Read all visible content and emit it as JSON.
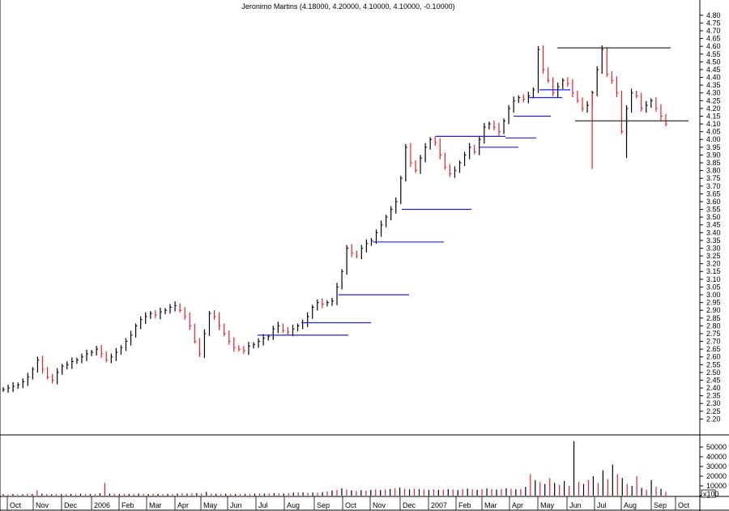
{
  "chart_data": [
    {
      "type": "line",
      "title": "Jeronimo Martins (4.18000, 4.20000, 4.10000, 4.10000, -0.10000)",
      "xlabel": "",
      "ylabel": "",
      "ylim": [
        2.15,
        4.82
      ],
      "y_ticks": [
        "4.80",
        "4.75",
        "4.70",
        "4.65",
        "4.60",
        "4.55",
        "4.50",
        "4.45",
        "4.40",
        "4.35",
        "4.30",
        "4.25",
        "4.20",
        "4.15",
        "4.10",
        "4.05",
        "4.00",
        "3.95",
        "3.90",
        "3.85",
        "3.80",
        "3.75",
        "3.70",
        "3.65",
        "3.60",
        "3.55",
        "3.50",
        "3.45",
        "3.40",
        "3.35",
        "3.30",
        "3.25",
        "3.20",
        "3.15",
        "3.10",
        "3.05",
        "3.00",
        "2.95",
        "2.90",
        "2.85",
        "2.80",
        "2.75",
        "2.70",
        "2.65",
        "2.60",
        "2.55",
        "2.50",
        "2.45",
        "2.40",
        "2.35",
        "2.30",
        "2.25",
        "2.20"
      ],
      "x_ticks": [
        "Oct",
        "Nov",
        "Dec",
        "2006",
        "Feb",
        "Mar",
        "Apr",
        "May",
        "Jun",
        "Jul",
        "Aug",
        "Sep",
        "Oct",
        "Nov",
        "Dec",
        "2007",
        "Feb",
        "Mar",
        "Apr",
        "May",
        "Jun",
        "Jul",
        "Aug",
        "Sep",
        "Oct"
      ],
      "grid": false,
      "legend": "none",
      "series": [
        {
          "values": [
            2.39,
            2.4,
            2.41,
            2.42,
            2.44,
            2.47,
            2.52,
            2.58,
            2.52,
            2.47,
            2.45,
            2.5,
            2.54,
            2.55,
            2.57,
            2.58,
            2.6,
            2.62,
            2.63,
            2.65,
            2.62,
            2.58,
            2.6,
            2.63,
            2.66,
            2.7,
            2.74,
            2.8,
            2.84,
            2.86,
            2.88,
            2.87,
            2.89,
            2.9,
            2.92,
            2.93,
            2.9,
            2.86,
            2.8,
            2.7,
            2.62,
            2.75,
            2.88,
            2.86,
            2.8,
            2.75,
            2.7,
            2.66,
            2.65,
            2.64,
            2.67,
            2.68,
            2.7,
            2.72,
            2.73,
            2.78,
            2.8,
            2.77,
            2.76,
            2.78,
            2.8,
            2.82,
            2.86,
            2.92,
            2.95,
            2.94,
            2.95,
            2.96,
            3.05,
            3.15,
            3.3,
            3.27,
            3.25,
            3.3,
            3.33,
            3.35,
            3.4,
            3.45,
            3.5,
            3.55,
            3.6,
            3.75,
            3.95,
            3.85,
            3.8,
            3.88,
            3.95,
            4.0,
            3.98,
            3.9,
            3.82,
            3.78,
            3.8,
            3.85,
            3.9,
            3.95,
            3.92,
            4.0,
            4.08,
            4.1,
            4.08,
            4.05,
            4.12,
            4.2,
            4.25,
            4.27,
            4.26,
            4.28,
            4.32,
            4.58,
            4.45,
            4.38,
            4.3,
            4.34,
            4.38,
            4.36,
            4.3,
            4.25,
            4.2,
            4.22,
            4.3,
            4.45,
            4.58,
            4.42,
            4.38,
            4.3,
            4.05,
            4.2,
            4.3,
            4.28,
            4.2,
            4.22,
            4.25,
            4.2,
            4.15,
            4.1
          ]
        }
      ],
      "annotations": {
        "resistance_lines_black": [
          4.59,
          4.12
        ],
        "step_lines_blue": [
          2.74,
          2.82,
          3.0,
          3.34,
          3.55,
          4.02,
          3.95,
          4.01,
          4.15,
          4.27,
          4.32
        ]
      }
    },
    {
      "type": "bar",
      "title": "",
      "xlabel": "",
      "ylabel": "",
      "ylim": [
        0,
        60000
      ],
      "y_ticks": [
        "50000",
        "40000",
        "30000",
        "20000",
        "10000",
        "0"
      ],
      "scale_note": "x100",
      "grid": false,
      "legend": "none",
      "series": [
        {
          "values": [
            1500,
            1200,
            1800,
            1400,
            1300,
            2000,
            1700,
            5500,
            2100,
            1600,
            1300,
            1800,
            1600,
            1500,
            1700,
            1400,
            1900,
            1600,
            1500,
            1700,
            2500,
            13000,
            2100,
            1800,
            1600,
            1900,
            1700,
            1600,
            2200,
            1800,
            1700,
            2000,
            1800,
            1600,
            1900,
            1700,
            2100,
            2300,
            2000,
            2400,
            2600,
            2200,
            3800,
            2100,
            1900,
            1800,
            2000,
            1700,
            1600,
            1800,
            1700,
            1900,
            2100,
            2300,
            2000,
            2200,
            2500,
            2300,
            2100,
            2600,
            3000,
            3500,
            3200,
            2800,
            3100,
            2900,
            3600,
            4200,
            5200,
            6000,
            7500,
            6200,
            5400,
            4800,
            5600,
            5000,
            5900,
            6400,
            5700,
            6300,
            6800,
            7400,
            8200,
            7000,
            6500,
            7100,
            6600,
            6200,
            5800,
            6400,
            5900,
            6100,
            6700,
            6300,
            5700,
            6900,
            7200,
            6500,
            6000,
            6800,
            7400,
            6600,
            6200,
            7000,
            7600,
            7100,
            6500,
            6900,
            9000,
            22000,
            16000,
            14000,
            12000,
            18000,
            13000,
            11000,
            15000,
            10000,
            56000,
            14000,
            12000,
            16000,
            20000,
            13000,
            26000,
            17000,
            32000,
            22000,
            18000,
            12000,
            10000,
            20000,
            8000,
            6000,
            16000,
            9000,
            7000,
            4000
          ]
        }
      ]
    }
  ]
}
